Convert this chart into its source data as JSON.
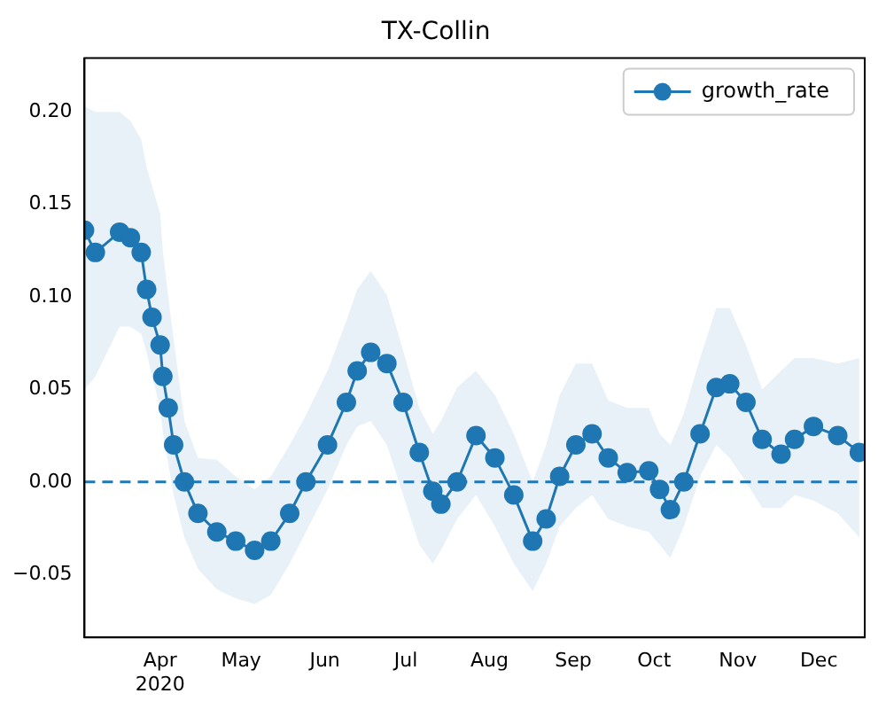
{
  "chart_data": {
    "type": "line",
    "title": "TX-Collin",
    "x": [
      "2020-03-04",
      "2020-03-08",
      "2020-03-17",
      "2020-03-21",
      "2020-03-25",
      "2020-03-27",
      "2020-03-29",
      "2020-04-01",
      "2020-04-02",
      "2020-04-04",
      "2020-04-06",
      "2020-04-10",
      "2020-04-15",
      "2020-04-22",
      "2020-04-29",
      "2020-05-06",
      "2020-05-12",
      "2020-05-19",
      "2020-05-25",
      "2020-06-02",
      "2020-06-09",
      "2020-06-13",
      "2020-06-18",
      "2020-06-24",
      "2020-06-30",
      "2020-07-06",
      "2020-07-11",
      "2020-07-14",
      "2020-07-20",
      "2020-07-27",
      "2020-08-03",
      "2020-08-10",
      "2020-08-17",
      "2020-08-22",
      "2020-08-27",
      "2020-09-02",
      "2020-09-08",
      "2020-09-14",
      "2020-09-21",
      "2020-09-29",
      "2020-10-03",
      "2020-10-07",
      "2020-10-12",
      "2020-10-18",
      "2020-10-24",
      "2020-10-29",
      "2020-11-04",
      "2020-11-10",
      "2020-11-17",
      "2020-11-22",
      "2020-11-29",
      "2020-12-08",
      "2020-12-16"
    ],
    "series": [
      {
        "name": "growth_rate",
        "color": "#1f77b4",
        "values": [
          0.136,
          0.124,
          0.135,
          0.132,
          0.124,
          0.104,
          0.089,
          0.074,
          0.057,
          0.04,
          0.02,
          0.0,
          -0.017,
          -0.027,
          -0.032,
          -0.037,
          -0.032,
          -0.017,
          0.0,
          0.02,
          0.043,
          0.06,
          0.07,
          0.064,
          0.043,
          0.016,
          -0.005,
          -0.012,
          0.0,
          0.025,
          0.013,
          -0.007,
          -0.032,
          -0.02,
          0.003,
          0.02,
          0.026,
          0.013,
          0.005,
          0.006,
          -0.004,
          -0.015,
          0.0,
          0.026,
          0.051,
          0.053,
          0.043,
          0.023,
          0.015,
          0.023,
          0.03,
          0.025,
          0.016
        ],
        "upper": [
          0.203,
          0.2,
          0.2,
          0.195,
          0.185,
          0.17,
          0.16,
          0.145,
          0.125,
          0.1,
          0.077,
          0.033,
          0.013,
          0.012,
          0.003,
          -0.004,
          0.003,
          0.02,
          0.036,
          0.06,
          0.087,
          0.104,
          0.114,
          0.101,
          0.071,
          0.04,
          0.026,
          0.033,
          0.051,
          0.06,
          0.047,
          0.026,
          0.0,
          0.02,
          0.047,
          0.064,
          0.064,
          0.044,
          0.04,
          0.04,
          0.026,
          0.02,
          0.037,
          0.067,
          0.094,
          0.094,
          0.074,
          0.05,
          0.06,
          0.067,
          0.067,
          0.064,
          0.067
        ],
        "lower": [
          0.05,
          0.057,
          0.084,
          0.084,
          0.08,
          0.07,
          0.057,
          0.04,
          0.027,
          0.01,
          -0.007,
          -0.03,
          -0.047,
          -0.058,
          -0.063,
          -0.066,
          -0.061,
          -0.044,
          -0.027,
          -0.004,
          0.02,
          0.03,
          0.033,
          0.02,
          -0.007,
          -0.034,
          -0.044,
          -0.037,
          -0.02,
          -0.007,
          -0.024,
          -0.044,
          -0.059,
          -0.044,
          -0.024,
          -0.014,
          -0.007,
          -0.02,
          -0.024,
          -0.027,
          -0.034,
          -0.041,
          -0.024,
          0.003,
          0.02,
          0.013,
          0.0,
          -0.014,
          -0.014,
          -0.007,
          -0.01,
          -0.017,
          -0.03
        ]
      }
    ],
    "xlim": [
      "2020-03-04",
      "2020-12-18"
    ],
    "xticks": [
      {
        "value": "2020-04-01",
        "label": "Apr\n2020"
      },
      {
        "value": "2020-05-01",
        "label": "May"
      },
      {
        "value": "2020-06-01",
        "label": "Jun"
      },
      {
        "value": "2020-07-01",
        "label": "Jul"
      },
      {
        "value": "2020-08-01",
        "label": "Aug"
      },
      {
        "value": "2020-09-01",
        "label": "Sep"
      },
      {
        "value": "2020-10-01",
        "label": "Oct"
      },
      {
        "value": "2020-11-01",
        "label": "Nov"
      },
      {
        "value": "2020-12-01",
        "label": "Dec"
      }
    ],
    "ylim": [
      -0.084,
      0.229
    ],
    "yticks": [
      {
        "value": -0.05,
        "label": "−0.05"
      },
      {
        "value": 0,
        "label": "0.00"
      },
      {
        "value": 0.05,
        "label": "0.05"
      },
      {
        "value": 0.1,
        "label": "0.10"
      },
      {
        "value": 0.15,
        "label": "0.15"
      },
      {
        "value": 0.2,
        "label": "0.20"
      }
    ],
    "ref_lines": [
      {
        "axis": "y",
        "value": 0,
        "color": "#1f77b4",
        "line_style": "dashed"
      }
    ],
    "grid": false,
    "legend": "top right",
    "marker": "circle",
    "line_style": "solid"
  }
}
